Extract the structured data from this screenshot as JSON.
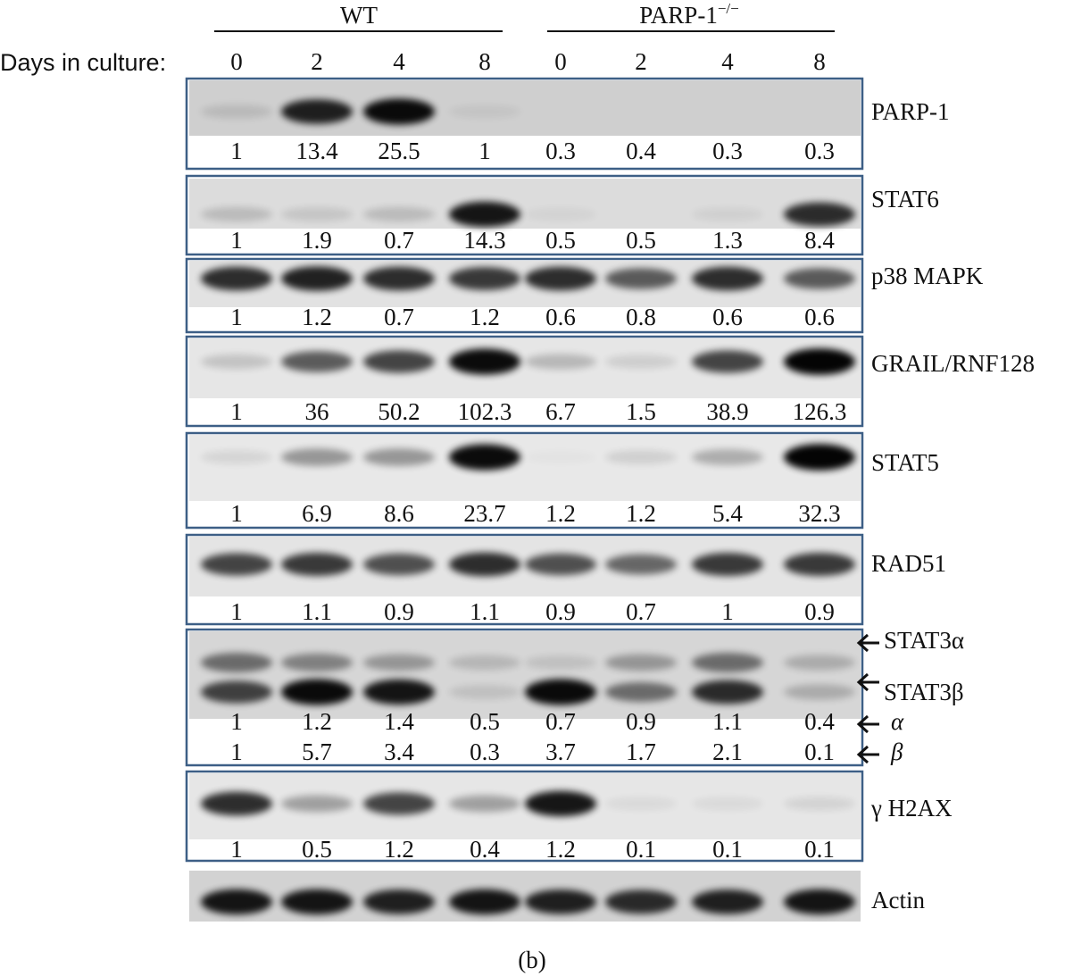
{
  "header": {
    "groups": [
      {
        "label": "WT"
      },
      {
        "label": "PARP-1",
        "sup": "−/−"
      }
    ],
    "days_label": "Days in culture:",
    "days": [
      "0",
      "2",
      "4",
      "8",
      "0",
      "2",
      "4",
      "8"
    ]
  },
  "blots": [
    {
      "label": "PARP-1",
      "values": [
        1,
        13.4,
        25.5,
        1,
        0.3,
        0.4,
        0.3,
        0.3
      ]
    },
    {
      "label": "STAT6",
      "values": [
        1,
        1.9,
        0.7,
        14.3,
        0.5,
        0.5,
        1.3,
        8.4
      ]
    },
    {
      "label": "p38 MAPK",
      "values": [
        1,
        1.2,
        0.7,
        1.2,
        0.6,
        0.8,
        0.6,
        0.6
      ]
    },
    {
      "label": "GRAIL/RNF128",
      "values": [
        1,
        36,
        50.2,
        102.3,
        6.7,
        1.5,
        38.9,
        126.3
      ]
    },
    {
      "label": "STAT5",
      "values": [
        1,
        6.9,
        8.6,
        23.7,
        1.2,
        1.2,
        5.4,
        32.3
      ]
    },
    {
      "label": "RAD51",
      "values": [
        1,
        1.1,
        0.9,
        1.1,
        0.9,
        0.7,
        1,
        0.9
      ]
    },
    {
      "labels": [
        "STAT3α",
        "STAT3β"
      ],
      "rows": [
        {
          "label": "α",
          "values": [
            1,
            1.2,
            1.4,
            0.5,
            0.7,
            0.9,
            1.1,
            0.4
          ]
        },
        {
          "label": "β",
          "values": [
            1,
            5.7,
            3.4,
            0.3,
            3.7,
            1.7,
            2.1,
            0.1
          ]
        }
      ]
    },
    {
      "label": "γ H2AX",
      "values": [
        1,
        0.5,
        1.2,
        0.4,
        1.2,
        0.1,
        0.1,
        0.1
      ]
    },
    {
      "label": "Actin"
    }
  ],
  "caption": "(b)"
}
